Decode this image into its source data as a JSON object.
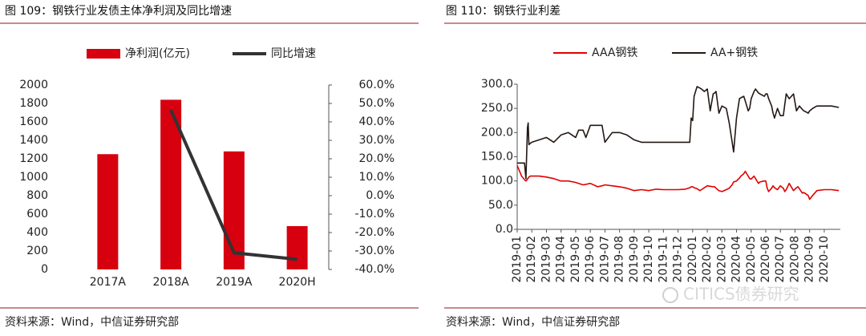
{
  "chart_data": [
    {
      "type": "bar",
      "title": "图 109：钢铁行业发债主体净利润及同比增速",
      "source": "资料来源：Wind，中信证券研究部",
      "categories": [
        "2017A",
        "2018A",
        "2019A",
        "2020H"
      ],
      "series": [
        {
          "name": "净利润(亿元)",
          "type": "bar",
          "color": "#d7000f",
          "values": [
            1250,
            1840,
            1280,
            470
          ]
        },
        {
          "name": "同比增速",
          "type": "line",
          "axis": "y2",
          "color": "#333333",
          "values": [
            null,
            46.5,
            -31,
            -34.5
          ]
        }
      ],
      "ylim": [
        0,
        2000
      ],
      "yticks": [
        0,
        200,
        400,
        600,
        800,
        1000,
        1200,
        1400,
        1600,
        1800,
        2000
      ],
      "y2lim": [
        -40,
        60
      ],
      "y2ticks": [
        {
          "value": -40,
          "label": "-40.0%"
        },
        {
          "value": -30,
          "label": "-30.0%"
        },
        {
          "value": -20,
          "label": "-20.0%"
        },
        {
          "value": -10,
          "label": "-10.0%"
        },
        {
          "value": 0,
          "label": "0.0%"
        },
        {
          "value": 10,
          "label": "10.0%"
        },
        {
          "value": 20,
          "label": "20.0%"
        },
        {
          "value": 30,
          "label": "30.0%"
        },
        {
          "value": 40,
          "label": "40.0%"
        },
        {
          "value": 50,
          "label": "50.0%"
        },
        {
          "value": 60,
          "label": "60.0%"
        }
      ],
      "legend": "top",
      "grid": false
    },
    {
      "type": "line",
      "title": "图 110：钢铁行业利差",
      "source": "资料来源：Wind，中信证券研究部",
      "x": [
        0,
        0.3,
        0.5,
        0.6,
        0.7,
        0.75,
        0.8,
        0.9,
        1,
        1.5,
        2,
        2.5,
        3,
        3.5,
        4,
        4.2,
        4.5,
        4.7,
        5,
        5.5,
        5.8,
        6,
        6.5,
        7,
        7.5,
        8,
        8.5,
        9,
        9.5,
        10,
        10.5,
        11,
        11.5,
        11.8,
        11.9,
        12,
        12.1,
        12.3,
        12.5,
        12.6,
        12.8,
        13,
        13.2,
        13.4,
        13.5,
        13.6,
        13.8,
        14,
        14.3,
        14.5,
        14.7,
        14.8,
        15,
        15.2,
        15.3,
        15.5,
        15.6,
        15.8,
        15.9,
        16,
        16.2,
        16.3,
        16.5,
        16.6,
        16.9,
        17,
        17.1,
        17.2,
        17.4,
        17.5,
        17.6,
        17.8,
        18,
        18.2,
        18.3,
        18.4,
        18.6,
        18.9,
        19.1,
        19.2,
        19.3,
        19.5,
        19.6,
        19.8,
        19.9,
        20,
        20.2,
        20.5,
        21,
        21.5,
        22
      ],
      "series": [
        {
          "name": "AAA钢铁",
          "color": "#e00000",
          "values": [
            132,
            110,
            103,
            100,
            104,
            106,
            108,
            110,
            110,
            110,
            108,
            105,
            100,
            100,
            97,
            95,
            92,
            93,
            95,
            88,
            90,
            92,
            90,
            88,
            85,
            80,
            82,
            80,
            83,
            82,
            82,
            82,
            83,
            86,
            88,
            88,
            86,
            84,
            80,
            82,
            86,
            90,
            89,
            88,
            88,
            85,
            80,
            78,
            82,
            85,
            92,
            98,
            100,
            106,
            110,
            115,
            120,
            110,
            105,
            104,
            110,
            105,
            95,
            98,
            100,
            100,
            85,
            78,
            85,
            90,
            86,
            82,
            90,
            85,
            78,
            82,
            95,
            80,
            86,
            88,
            84,
            75,
            76,
            72,
            70,
            62,
            70,
            80,
            82,
            82,
            80
          ]
        },
        {
          "name": "AA+钢铁",
          "color": "#231815",
          "values": [
            137,
            137,
            137,
            105,
            210,
            220,
            175,
            178,
            180,
            185,
            190,
            180,
            195,
            200,
            190,
            205,
            205,
            190,
            215,
            215,
            215,
            180,
            200,
            200,
            195,
            185,
            180,
            180,
            180,
            180,
            180,
            180,
            180,
            180,
            230,
            225,
            275,
            295,
            292,
            290,
            285,
            290,
            245,
            280,
            282,
            285,
            240,
            255,
            250,
            220,
            180,
            160,
            230,
            270,
            272,
            275,
            265,
            245,
            250,
            270,
            285,
            290,
            282,
            280,
            275,
            280,
            280,
            270,
            255,
            240,
            230,
            250,
            235,
            235,
            258,
            280,
            270,
            280,
            245,
            250,
            255,
            248,
            245,
            242,
            240,
            245,
            250,
            255,
            255,
            255,
            252
          ]
        }
      ],
      "xlim": [
        0,
        22.1
      ],
      "xticks": [
        {
          "value": 0,
          "label": "2019-01"
        },
        {
          "value": 1,
          "label": "2019-02"
        },
        {
          "value": 2,
          "label": "2019-03"
        },
        {
          "value": 3,
          "label": "2019-04"
        },
        {
          "value": 4,
          "label": "2019-05"
        },
        {
          "value": 5,
          "label": "2019-06"
        },
        {
          "value": 6,
          "label": "2019-07"
        },
        {
          "value": 7,
          "label": "2019-08"
        },
        {
          "value": 8,
          "label": "2019-09"
        },
        {
          "value": 9,
          "label": "2019-10"
        },
        {
          "value": 10,
          "label": "2019-11"
        },
        {
          "value": 11,
          "label": "2019-12"
        },
        {
          "value": 12,
          "label": "2020-01"
        },
        {
          "value": 13,
          "label": "2020-02"
        },
        {
          "value": 14,
          "label": "2020-03"
        },
        {
          "value": 15,
          "label": "2020-04"
        },
        {
          "value": 16,
          "label": "2020-05"
        },
        {
          "value": 17,
          "label": "2020-06"
        },
        {
          "value": 18,
          "label": "2020-07"
        },
        {
          "value": 19,
          "label": "2020-08"
        },
        {
          "value": 20,
          "label": "2020-09"
        },
        {
          "value": 21,
          "label": "2020-10"
        }
      ],
      "ylim": [
        0,
        300
      ],
      "yticks": [
        {
          "value": 0,
          "label": "0.0"
        },
        {
          "value": 50,
          "label": "50.0"
        },
        {
          "value": 100,
          "label": "100.0"
        },
        {
          "value": 150,
          "label": "150.0"
        },
        {
          "value": 200,
          "label": "200.0"
        },
        {
          "value": 250,
          "label": "250.0"
        },
        {
          "value": 300,
          "label": "300.0"
        }
      ],
      "legend": "top",
      "grid": false
    }
  ],
  "watermark": "CITICS债券研究"
}
